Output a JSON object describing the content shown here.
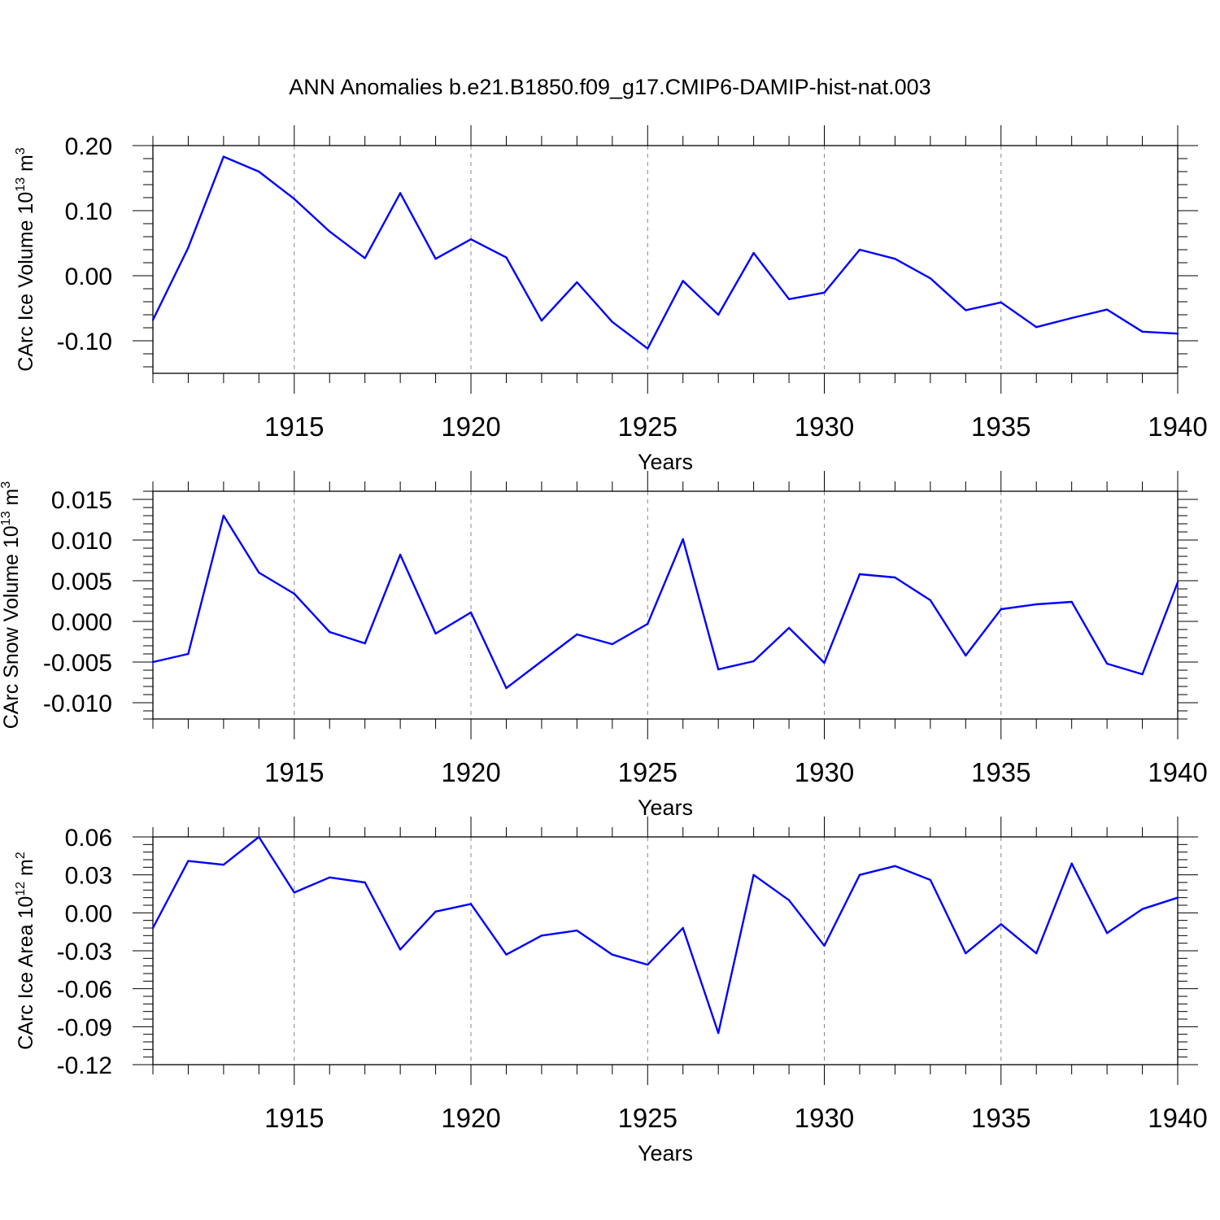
{
  "chart_data": [
    {
      "type": "line",
      "title": "ANN Anomalies b.e21.B1850.f09_g17.CMIP6-DAMIP-hist-nat.003",
      "xlabel": "Years",
      "ylabel": "CArc Ice Volume 10",
      "ylabel_exp": "13",
      "ylabel_unit": "m",
      "ylabel_unit_exp": "3",
      "xlim": [
        1911,
        1940
      ],
      "ylim": [
        -0.15,
        0.2
      ],
      "x_ticks": [
        "1915",
        "1920",
        "1925",
        "1930",
        "1935",
        "1940"
      ],
      "y_ticks": [
        "0.20",
        "0.10",
        "0.00",
        "-0.10"
      ],
      "y_tick_values": [
        0.2,
        0.1,
        0.0,
        -0.1
      ],
      "grid": "dashed vertical lines at x ticks",
      "color": "#0000ff",
      "x": [
        1911,
        1912,
        1913,
        1914,
        1915,
        1916,
        1917,
        1918,
        1919,
        1920,
        1921,
        1922,
        1923,
        1924,
        1925,
        1926,
        1927,
        1928,
        1929,
        1930,
        1931,
        1932,
        1933,
        1934,
        1935,
        1936,
        1937,
        1938,
        1939,
        1940
      ],
      "values": [
        -0.068,
        0.043,
        0.183,
        0.16,
        0.118,
        0.068,
        0.027,
        0.127,
        0.026,
        0.056,
        0.028,
        -0.069,
        -0.01,
        -0.071,
        -0.112,
        -0.008,
        -0.06,
        0.035,
        -0.036,
        -0.026,
        0.04,
        0.026,
        -0.004,
        -0.053,
        -0.041,
        -0.079,
        -0.065,
        -0.052,
        -0.086,
        -0.089
      ]
    },
    {
      "type": "line",
      "title": "",
      "xlabel": "Years",
      "ylabel": "CArc Snow Volume 10",
      "ylabel_exp": "13",
      "ylabel_unit": "m",
      "ylabel_unit_exp": "3",
      "xlim": [
        1911,
        1940
      ],
      "ylim": [
        -0.012,
        0.016
      ],
      "x_ticks": [
        "1915",
        "1920",
        "1925",
        "1930",
        "1935",
        "1940"
      ],
      "y_ticks": [
        "0.015",
        "0.010",
        "0.005",
        "0.000",
        "-0.005",
        "-0.010"
      ],
      "y_tick_values": [
        0.015,
        0.01,
        0.005,
        0.0,
        -0.005,
        -0.01
      ],
      "grid": "dashed vertical lines at x ticks",
      "color": "#0000ff",
      "x": [
        1911,
        1912,
        1913,
        1914,
        1915,
        1916,
        1917,
        1918,
        1919,
        1920,
        1921,
        1922,
        1923,
        1924,
        1925,
        1926,
        1927,
        1928,
        1929,
        1930,
        1931,
        1932,
        1933,
        1934,
        1935,
        1936,
        1937,
        1938,
        1939,
        1940
      ],
      "values": [
        -0.005,
        -0.004,
        0.013,
        0.006,
        0.0034,
        -0.0013,
        -0.0027,
        0.0082,
        -0.0015,
        0.0011,
        -0.0082,
        -0.0049,
        -0.0016,
        -0.0028,
        -0.0003,
        0.0101,
        -0.0059,
        -0.0049,
        -0.0008,
        -0.0051,
        0.0058,
        0.0054,
        0.0026,
        -0.0042,
        0.0015,
        0.0021,
        0.0024,
        -0.0052,
        -0.0065,
        0.0048
      ]
    },
    {
      "type": "line",
      "title": "",
      "xlabel": "Years",
      "ylabel": "CArc Ice Area 10",
      "ylabel_exp": "12",
      "ylabel_unit": "m",
      "ylabel_unit_exp": "2",
      "xlim": [
        1911,
        1940
      ],
      "ylim": [
        -0.12,
        0.06
      ],
      "x_ticks": [
        "1915",
        "1920",
        "1925",
        "1930",
        "1935",
        "1940"
      ],
      "y_ticks": [
        "0.06",
        "0.03",
        "0.00",
        "-0.03",
        "-0.06",
        "-0.09",
        "-0.12"
      ],
      "y_tick_values": [
        0.06,
        0.03,
        0.0,
        -0.03,
        -0.06,
        -0.09,
        -0.12
      ],
      "grid": "dashed vertical lines at x ticks",
      "color": "#0000ff",
      "x": [
        1911,
        1912,
        1913,
        1914,
        1915,
        1916,
        1917,
        1918,
        1919,
        1920,
        1921,
        1922,
        1923,
        1924,
        1925,
        1926,
        1927,
        1928,
        1929,
        1930,
        1931,
        1932,
        1933,
        1934,
        1935,
        1936,
        1937,
        1938,
        1939,
        1940
      ],
      "values": [
        -0.012,
        0.041,
        0.038,
        0.06,
        0.016,
        0.028,
        0.024,
        -0.029,
        0.001,
        0.007,
        -0.033,
        -0.018,
        -0.014,
        -0.033,
        -0.041,
        -0.012,
        -0.095,
        0.03,
        0.01,
        -0.026,
        0.03,
        0.037,
        0.026,
        -0.032,
        -0.009,
        -0.032,
        0.039,
        -0.016,
        0.003,
        0.012
      ]
    }
  ]
}
